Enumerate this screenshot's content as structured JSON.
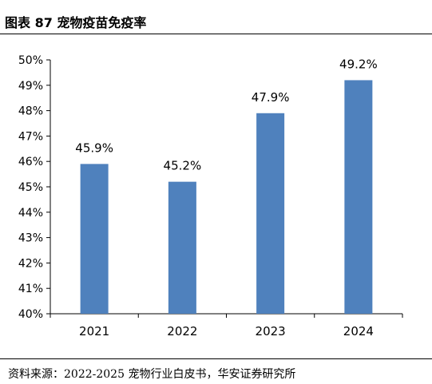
{
  "figure": {
    "title": "图表 87  宠物疫苗免疫率",
    "source": "资料来源：2022-2025 宠物行业白皮书，华安证券研究所"
  },
  "colors": {
    "bar": "#4F81BD",
    "axis": "#000000",
    "text": "#000000"
  },
  "chart_data": {
    "type": "bar",
    "title": "",
    "xlabel": "",
    "ylabel": "",
    "categories": [
      "2021",
      "2022",
      "2023",
      "2024"
    ],
    "values": [
      45.9,
      45.2,
      47.9,
      49.2
    ],
    "data_labels": [
      "45.9%",
      "45.2%",
      "47.9%",
      "49.2%"
    ],
    "ylim": [
      40,
      50
    ],
    "y_ticks": [
      "40%",
      "41%",
      "42%",
      "43%",
      "44%",
      "45%",
      "46%",
      "47%",
      "48%",
      "49%",
      "50%"
    ],
    "grid": false,
    "legend": "none"
  }
}
